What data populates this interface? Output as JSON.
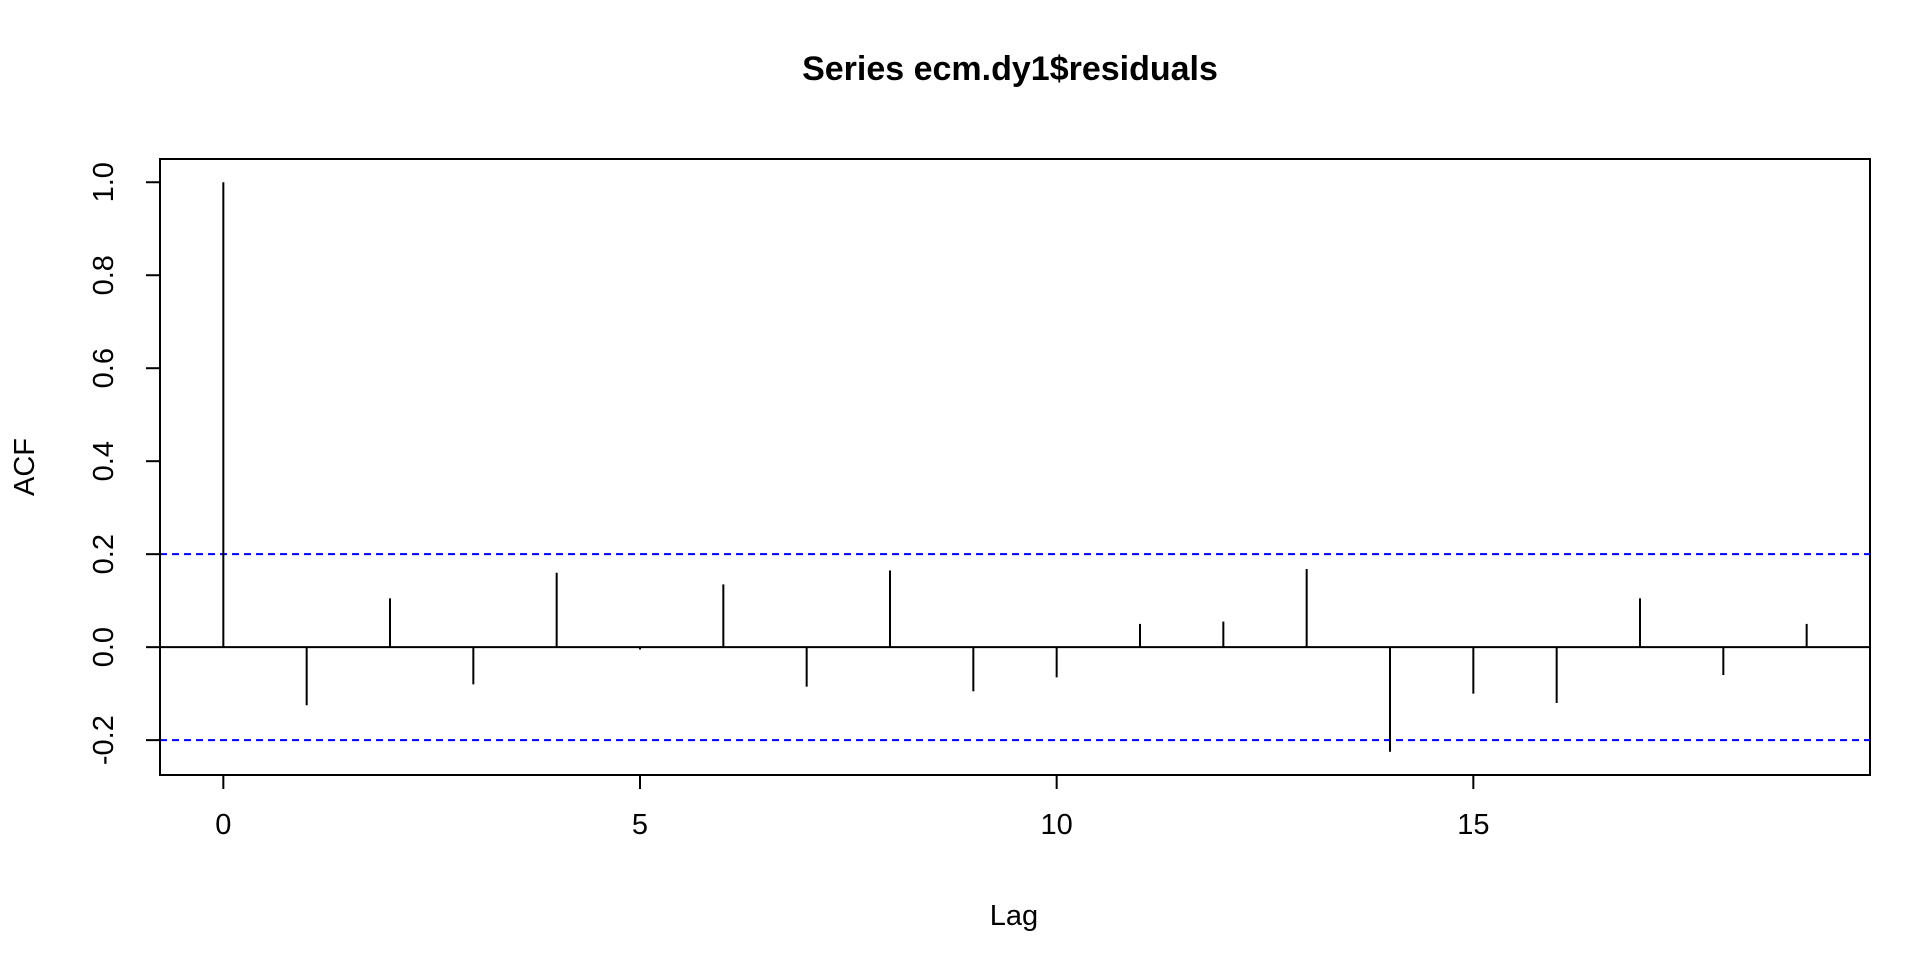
{
  "chart_data": {
    "type": "bar",
    "title": "Series  ecm.dy1$residuals",
    "xlabel": "Lag",
    "ylabel": "ACF",
    "x": [
      0,
      1,
      2,
      3,
      4,
      5,
      6,
      7,
      8,
      9,
      10,
      11,
      12,
      13,
      14,
      15,
      16,
      17,
      18,
      19
    ],
    "values": [
      1.0,
      -0.125,
      0.105,
      -0.08,
      0.16,
      -0.005,
      0.135,
      -0.085,
      0.165,
      -0.095,
      -0.065,
      0.05,
      0.055,
      0.168,
      -0.225,
      -0.1,
      -0.12,
      0.105,
      -0.06,
      0.05
    ],
    "xlim": [
      -0.76,
      19.76
    ],
    "ylim": [
      -0.275,
      1.05
    ],
    "x_ticks": [
      0,
      5,
      10,
      15
    ],
    "x_tick_labels": [
      "0",
      "5",
      "10",
      "15"
    ],
    "y_ticks": [
      -0.2,
      0.0,
      0.2,
      0.4,
      0.6,
      0.8,
      1.0
    ],
    "y_tick_labels": [
      "-0.2",
      "0.0",
      "0.2",
      "0.4",
      "0.6",
      "0.8",
      "1.0"
    ],
    "confidence_bounds": [
      0.2,
      -0.2
    ],
    "zero_line": 0.0,
    "grid": false,
    "colors": {
      "bars": "#000000",
      "confidence": "#0000ff",
      "frame": "#000000"
    }
  }
}
